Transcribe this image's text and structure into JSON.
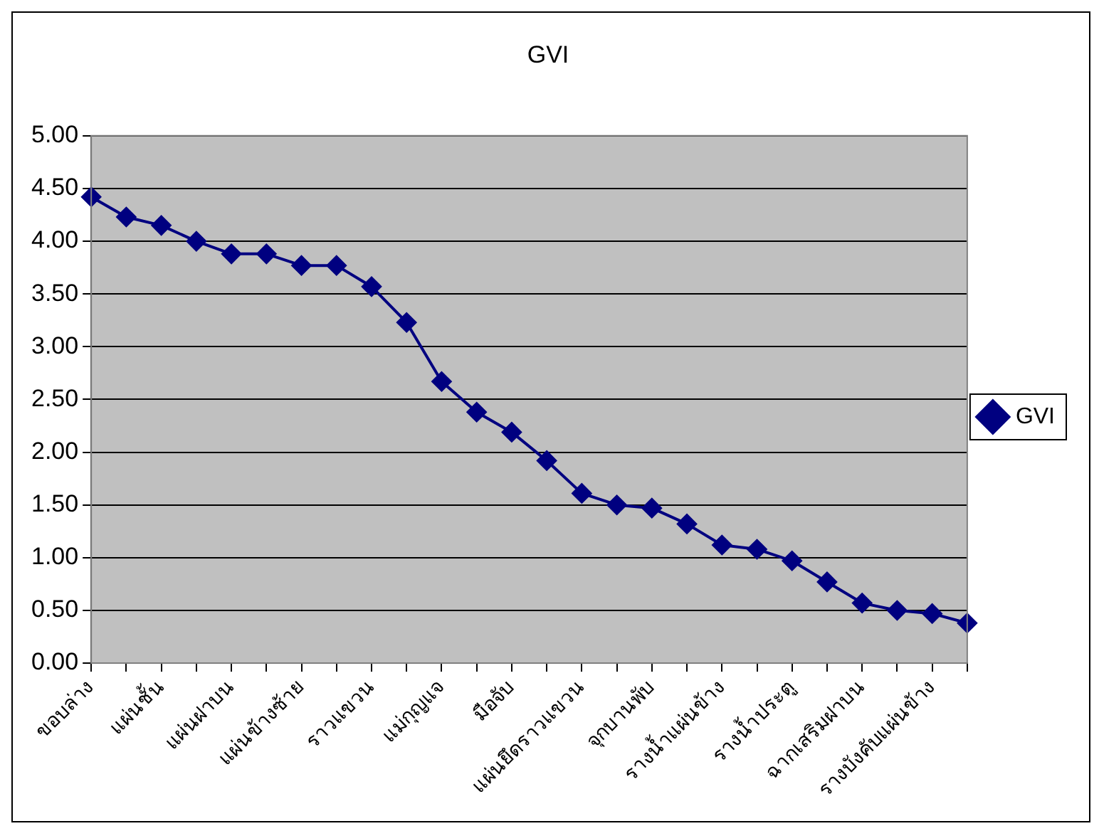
{
  "chart_data": {
    "type": "line",
    "title": "GVI",
    "categories": [
      "ขอบล่าง",
      null,
      "แผ่นชั้น",
      null,
      "แผ่นฝาบน",
      null,
      "แผ่นข้างซ้าย",
      null,
      "ราวแขวน",
      null,
      "แม่กุญแจ",
      null,
      "มือจับ",
      null,
      "แผ่นยึดราวแขวน",
      null,
      "จุกบานพับ",
      null,
      "รางน้ำแผ่นข้าง",
      null,
      "รางน้ำประตู",
      null,
      "ฉากเสริมฝาบน",
      null,
      "รางบังคับแผ่นข้าง",
      null
    ],
    "series": [
      {
        "name": "GVI",
        "color": "#000080",
        "values": [
          4.42,
          4.23,
          4.15,
          4.0,
          3.88,
          3.88,
          3.77,
          3.77,
          3.57,
          3.23,
          2.67,
          2.38,
          2.19,
          1.92,
          1.61,
          1.5,
          1.47,
          1.32,
          1.12,
          1.08,
          0.97,
          0.77,
          0.57,
          0.5,
          0.47,
          0.38
        ]
      }
    ],
    "ylim": [
      0,
      5
    ],
    "yticks": [
      {
        "value": 0,
        "label": "0.00"
      },
      {
        "value": 0.5,
        "label": "0.50"
      },
      {
        "value": 1,
        "label": "1.00"
      },
      {
        "value": 1.5,
        "label": "1.50"
      },
      {
        "value": 2,
        "label": "2.00"
      },
      {
        "value": 2.5,
        "label": "2.50"
      },
      {
        "value": 3,
        "label": "3.00"
      },
      {
        "value": 3.5,
        "label": "3.50"
      },
      {
        "value": 4,
        "label": "4.00"
      },
      {
        "value": 4.5,
        "label": "4.50"
      },
      {
        "value": 5,
        "label": "5.00"
      }
    ],
    "grid": "y",
    "legend": "right",
    "marker": "diamond",
    "line_style": "solid"
  }
}
